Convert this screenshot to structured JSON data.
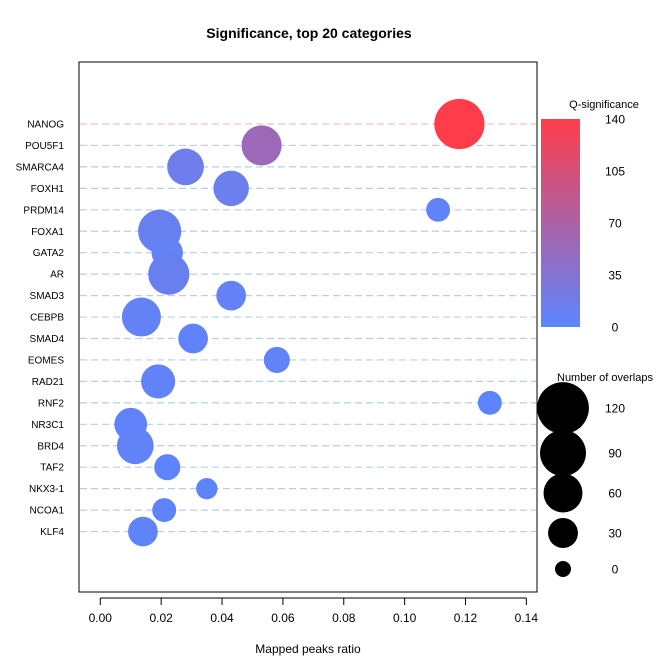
{
  "chart_data": {
    "type": "scatter",
    "title": "Significance, top 20 categories",
    "xlabel": "Mapped peaks ratio",
    "ylabel": "",
    "xlim": [
      -0.007,
      0.1435
    ],
    "x_ticks": [
      "0.00",
      "0.02",
      "0.04",
      "0.06",
      "0.08",
      "0.10",
      "0.12",
      "0.14"
    ],
    "x_tick_values": [
      0,
      0.02,
      0.04,
      0.06,
      0.08,
      0.1,
      0.12,
      0.14
    ],
    "categories": [
      "NANOG",
      "POU5F1",
      "SMARCA4",
      "FOXH1",
      "PRDM14",
      "FOXA1",
      "GATA2",
      "AR",
      "SMAD3",
      "CEBPB",
      "SMAD4",
      "EOMES",
      "RAD21",
      "RNF2",
      "NR3C1",
      "BRD4",
      "TAF2",
      "NKX3-1",
      "NCOA1",
      "KLF4"
    ],
    "points": [
      {
        "category": "NANOG",
        "x": 0.118,
        "overlaps": 125,
        "q": 140
      },
      {
        "category": "POU5F1",
        "x": 0.053,
        "overlaps": 70,
        "q": 55
      },
      {
        "category": "SMARCA4",
        "x": 0.028,
        "overlaps": 55,
        "q": 16
      },
      {
        "category": "FOXH1",
        "x": 0.043,
        "overlaps": 50,
        "q": 14
      },
      {
        "category": "PRDM14",
        "x": 0.111,
        "overlaps": 15,
        "q": 5
      },
      {
        "category": "FOXA1",
        "x": 0.0195,
        "overlaps": 85,
        "q": 12
      },
      {
        "category": "GATA2",
        "x": 0.022,
        "overlaps": 35,
        "q": 8
      },
      {
        "category": "AR",
        "x": 0.0225,
        "overlaps": 75,
        "q": 12
      },
      {
        "category": "SMAD3",
        "x": 0.043,
        "overlaps": 30,
        "q": 8
      },
      {
        "category": "CEBPB",
        "x": 0.0135,
        "overlaps": 65,
        "q": 8
      },
      {
        "category": "SMAD4",
        "x": 0.0305,
        "overlaps": 30,
        "q": 5
      },
      {
        "category": "EOMES",
        "x": 0.058,
        "overlaps": 20,
        "q": 5
      },
      {
        "category": "RAD21",
        "x": 0.019,
        "overlaps": 45,
        "q": 6
      },
      {
        "category": "RNF2",
        "x": 0.128,
        "overlaps": 15,
        "q": 3
      },
      {
        "category": "NR3C1",
        "x": 0.01,
        "overlaps": 40,
        "q": 5
      },
      {
        "category": "BRD4",
        "x": 0.0115,
        "overlaps": 55,
        "q": 6
      },
      {
        "category": "TAF2",
        "x": 0.022,
        "overlaps": 20,
        "q": 3
      },
      {
        "category": "NKX3-1",
        "x": 0.035,
        "overlaps": 10,
        "q": 3
      },
      {
        "category": "NCOA1",
        "x": 0.021,
        "overlaps": 15,
        "q": 3
      },
      {
        "category": "KLF4",
        "x": 0.014,
        "overlaps": 30,
        "q": 4
      }
    ],
    "color_legend": {
      "title": "Q-significance",
      "range": [
        0,
        140
      ],
      "ticks": [
        "0",
        "35",
        "70",
        "105",
        "140"
      ],
      "tick_values": [
        0,
        35,
        70,
        105,
        140
      ],
      "color_low": "#5a86ff",
      "color_high": "#ff3d4a"
    },
    "size_legend": {
      "title": "Number of overlaps",
      "ticks": [
        "120",
        "90",
        "60",
        "30",
        "0"
      ],
      "tick_values": [
        120,
        90,
        60,
        30,
        0
      ]
    },
    "gridlines": "horizontal-dashed",
    "gridline_color": "#b9cde8",
    "gridline_color_top": "#f4c2bf",
    "legend_position": "right"
  }
}
